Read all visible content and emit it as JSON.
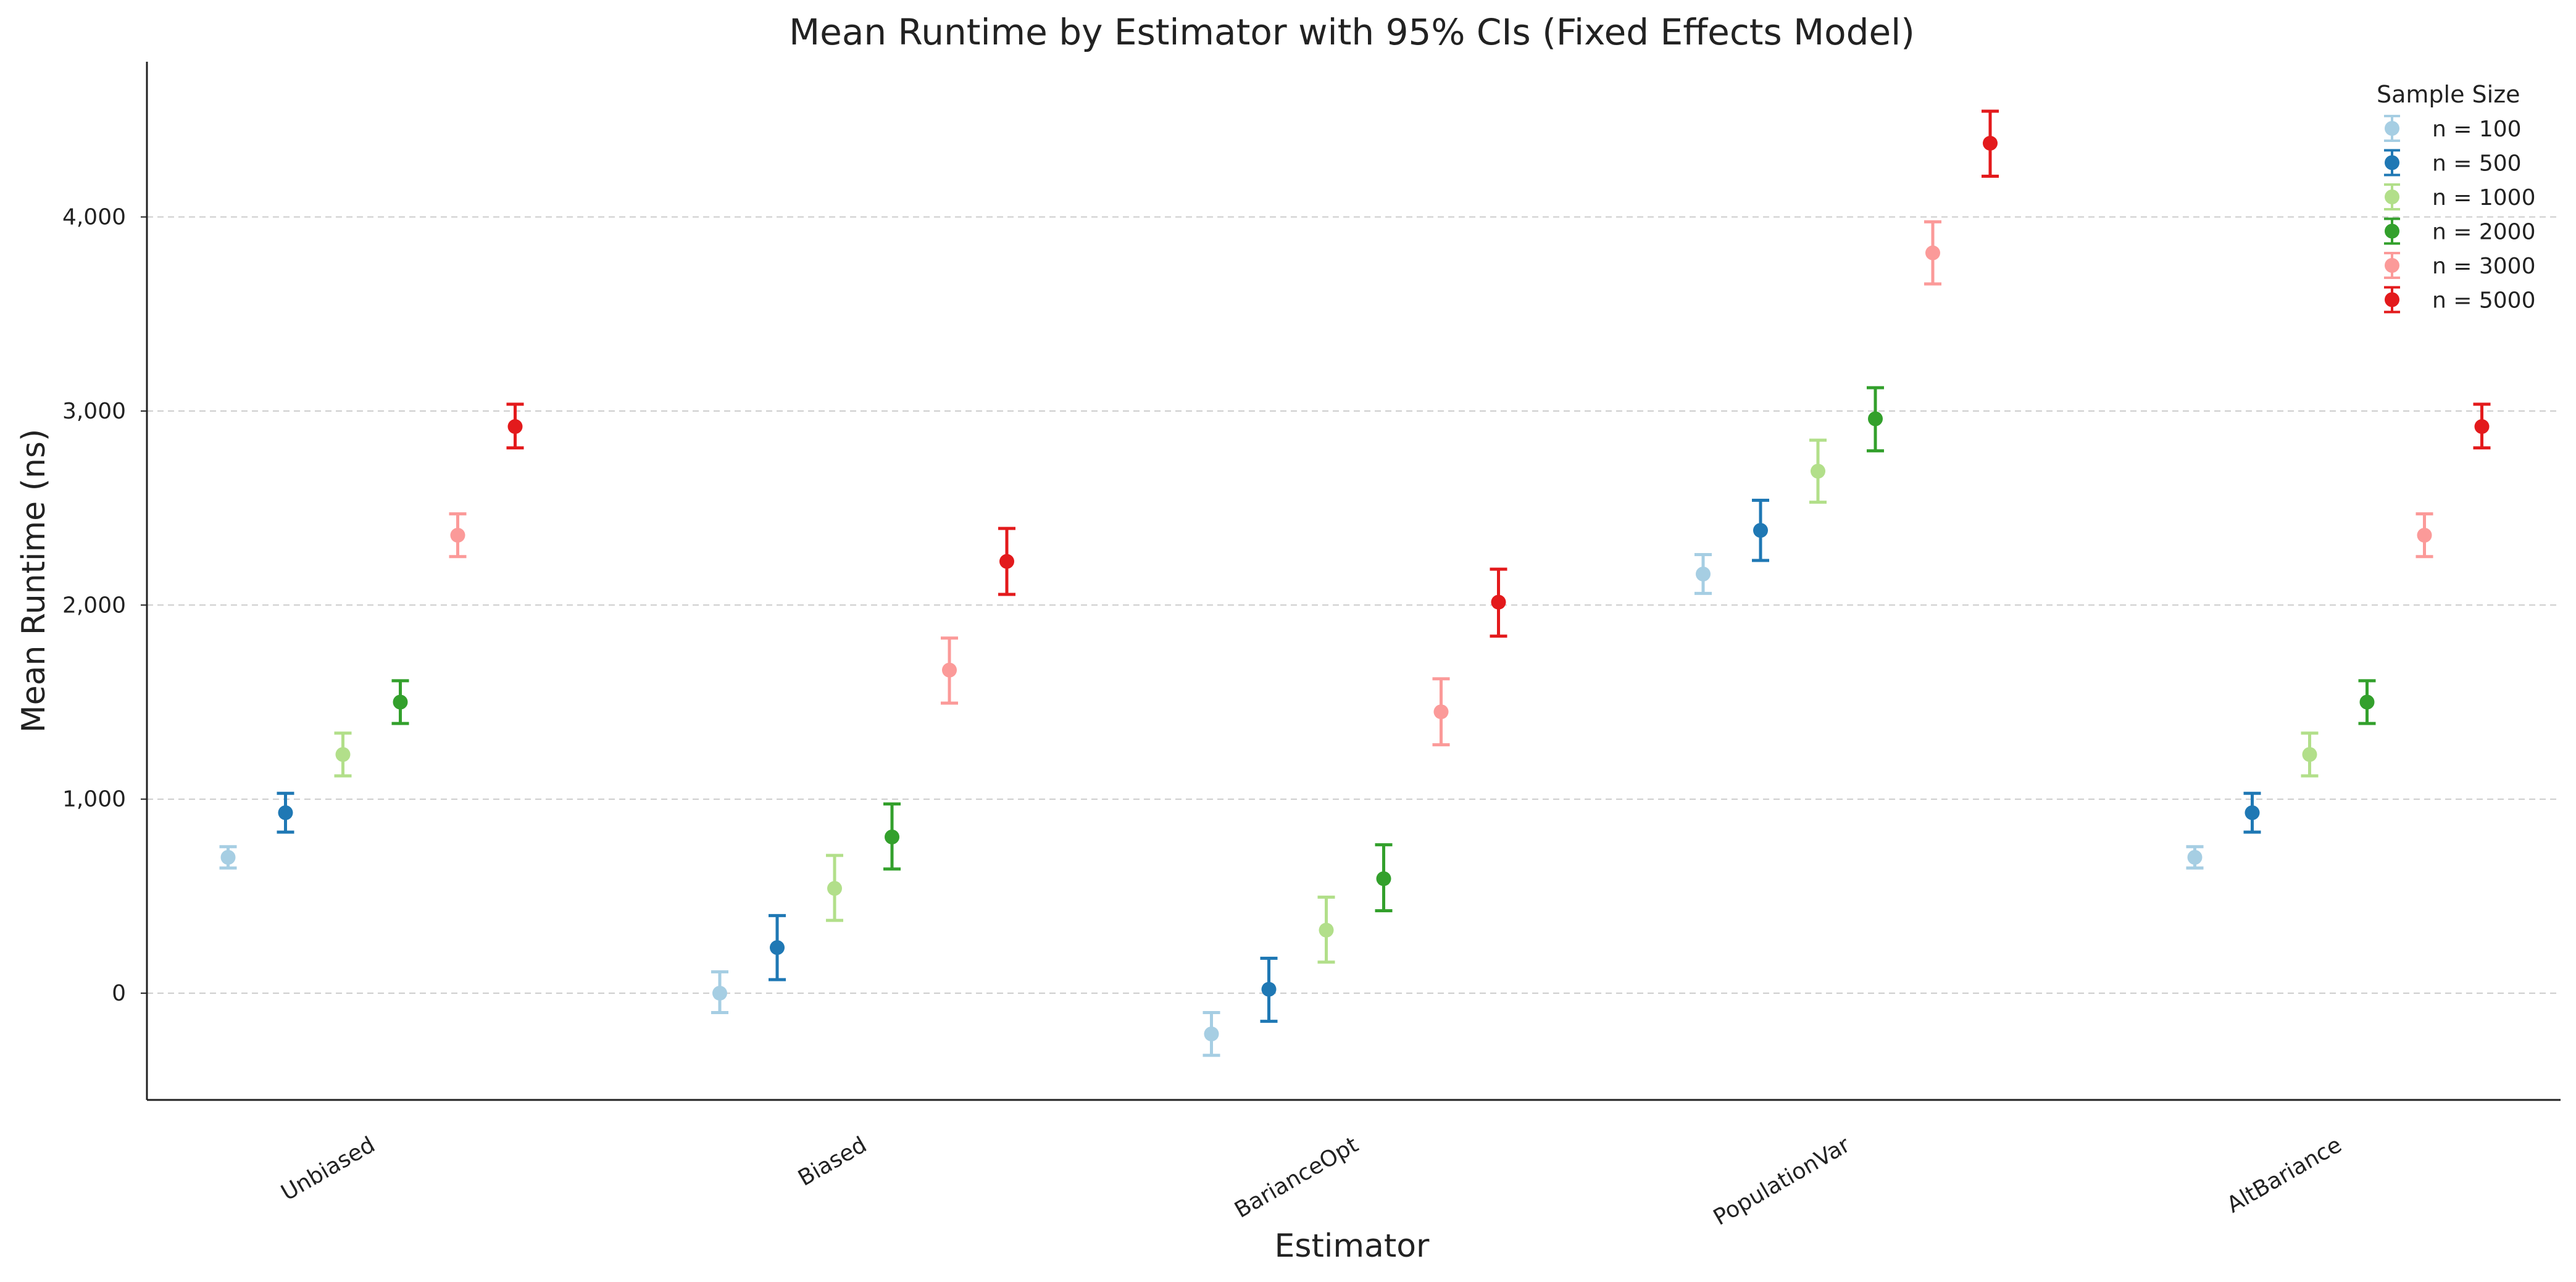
{
  "chart_data": {
    "type": "scatter",
    "title": "Mean Runtime by Estimator with 95% CIs (Fixed Effects Model)",
    "xlabel": "Estimator",
    "ylabel": "Mean Runtime (ns)",
    "categories": [
      "Unbiased",
      "Biased",
      "BarianceOpt",
      "PopulationVar",
      "AltBariance"
    ],
    "ylim": [
      -550,
      4800
    ],
    "yticks": [
      0,
      1000,
      2000,
      3000,
      4000
    ],
    "ytick_labels": [
      "0",
      "1,000",
      "2,000",
      "3,000",
      "4,000"
    ],
    "grid": true,
    "legend": {
      "title": "Sample Size",
      "placement": "top-right"
    },
    "series": [
      {
        "name": "n = 100",
        "color": "#a6cee3",
        "values": [
          700,
          0,
          -210,
          2160,
          700
        ],
        "ci_low": [
          645,
          -100,
          -320,
          2060,
          645
        ],
        "ci_high": [
          755,
          110,
          -100,
          2260,
          755
        ]
      },
      {
        "name": "n = 500",
        "color": "#1f78b4",
        "values": [
          930,
          235,
          20,
          2385,
          930
        ],
        "ci_low": [
          830,
          70,
          -145,
          2230,
          830
        ],
        "ci_high": [
          1030,
          400,
          180,
          2540,
          1030
        ]
      },
      {
        "name": "n = 1000",
        "color": "#b2df8a",
        "values": [
          1230,
          540,
          325,
          2690,
          1230
        ],
        "ci_low": [
          1120,
          375,
          160,
          2530,
          1120
        ],
        "ci_high": [
          1340,
          710,
          495,
          2850,
          1340
        ]
      },
      {
        "name": "n = 2000",
        "color": "#33a02c",
        "values": [
          1500,
          805,
          590,
          2960,
          1500
        ],
        "ci_low": [
          1390,
          640,
          425,
          2795,
          1390
        ],
        "ci_high": [
          1610,
          975,
          765,
          3120,
          1610
        ]
      },
      {
        "name": "n = 3000",
        "color": "#fb9a99",
        "values": [
          2360,
          1665,
          1450,
          3815,
          2360
        ],
        "ci_low": [
          2250,
          1495,
          1280,
          3655,
          2250
        ],
        "ci_high": [
          2470,
          1830,
          1620,
          3975,
          2470
        ]
      },
      {
        "name": "n = 5000",
        "color": "#e31a1c",
        "values": [
          2920,
          2225,
          2015,
          4380,
          2920
        ],
        "ci_low": [
          2810,
          2055,
          1840,
          4210,
          2810
        ],
        "ci_high": [
          3035,
          2395,
          2185,
          4545,
          3035
        ]
      }
    ]
  }
}
